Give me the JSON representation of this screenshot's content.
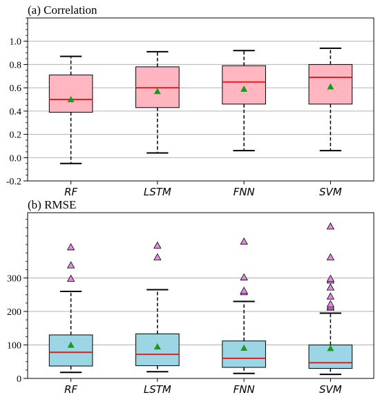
{
  "chart_data": [
    {
      "type": "box",
      "title": "(a) Correlation",
      "ylim": [
        -0.2,
        1.2
      ],
      "yticks": [
        -0.2,
        0.0,
        0.2,
        0.4,
        0.6,
        0.8,
        1.0
      ],
      "grid": "horizontal",
      "categories": [
        "RF",
        "LSTM",
        "FNN",
        "SVM"
      ],
      "box_color": "#ffb6c1",
      "median_color": "#e02020",
      "mean_color": "#1a9a1a",
      "boxes": [
        {
          "whislo": -0.05,
          "q1": 0.39,
          "med": 0.5,
          "q3": 0.71,
          "whishi": 0.87,
          "mean": 0.5,
          "fliers": []
        },
        {
          "whislo": 0.04,
          "q1": 0.43,
          "med": 0.6,
          "q3": 0.78,
          "whishi": 0.91,
          "mean": 0.57,
          "fliers": []
        },
        {
          "whislo": 0.06,
          "q1": 0.46,
          "med": 0.65,
          "q3": 0.79,
          "whishi": 0.92,
          "mean": 0.59,
          "fliers": []
        },
        {
          "whislo": 0.06,
          "q1": 0.46,
          "med": 0.69,
          "q3": 0.8,
          "whishi": 0.94,
          "mean": 0.61,
          "fliers": []
        }
      ]
    },
    {
      "type": "box",
      "title": "(b) RMSE",
      "ylim": [
        0,
        495
      ],
      "yticks": [
        0,
        100,
        200,
        300
      ],
      "grid": "horizontal",
      "categories": [
        "RF",
        "LSTM",
        "FNN",
        "SVM"
      ],
      "box_color": "#9cd6e4",
      "median_color": "#e02020",
      "mean_color": "#1a9a1a",
      "flier_color": "#e48ae4",
      "boxes": [
        {
          "whislo": 18,
          "q1": 37,
          "med": 78,
          "q3": 130,
          "whishi": 260,
          "mean": 100,
          "fliers": [
            298,
            338,
            392
          ]
        },
        {
          "whislo": 20,
          "q1": 38,
          "med": 72,
          "q3": 133,
          "whishi": 265,
          "mean": 95,
          "fliers": [
            362,
            397
          ]
        },
        {
          "whislo": 15,
          "q1": 33,
          "med": 60,
          "q3": 112,
          "whishi": 230,
          "mean": 91,
          "fliers": [
            258,
            262,
            302,
            409
          ]
        },
        {
          "whislo": 12,
          "q1": 30,
          "med": 47,
          "q3": 100,
          "whishi": 195,
          "mean": 90,
          "fliers": [
            212,
            216,
            222,
            245,
            272,
            293,
            298,
            362,
            454
          ]
        }
      ]
    }
  ]
}
